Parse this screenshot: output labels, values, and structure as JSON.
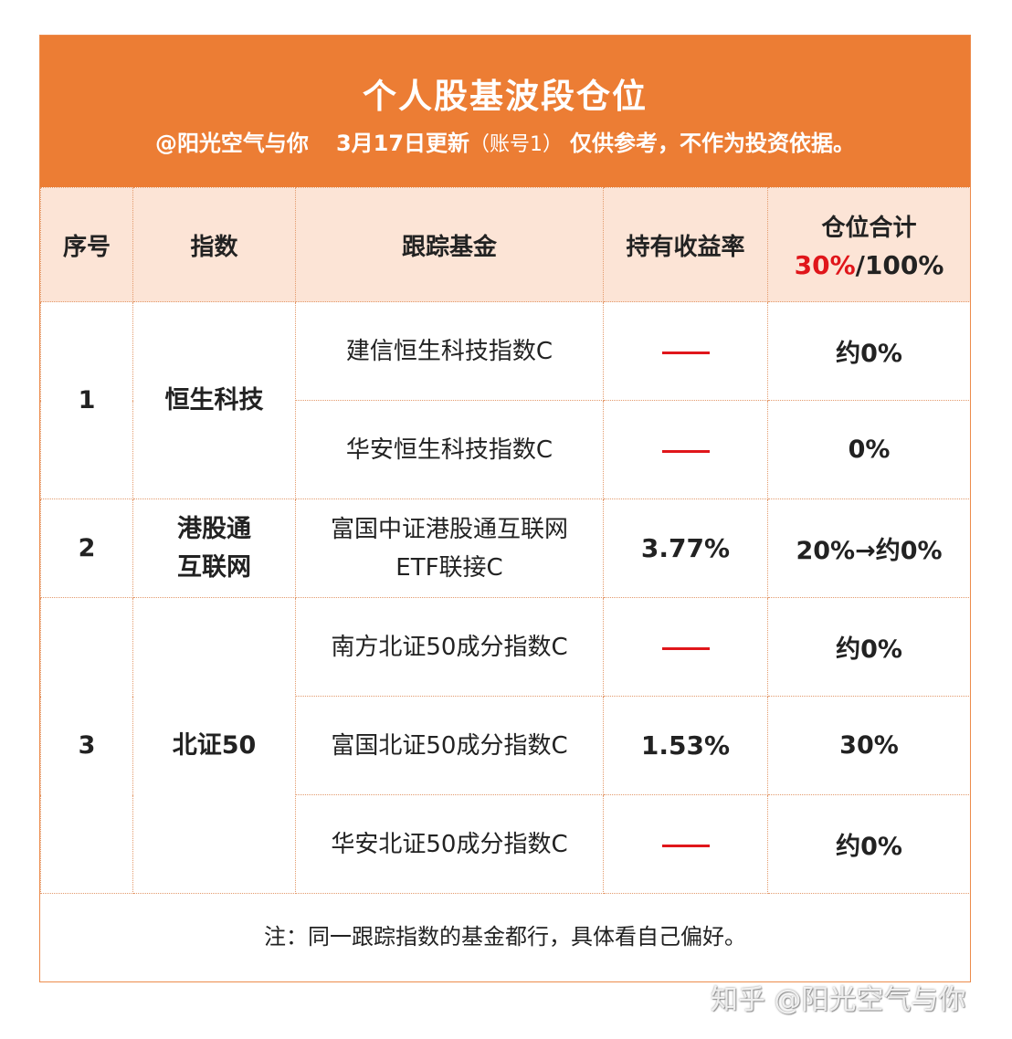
{
  "header": {
    "title": "个人股基波段仓位",
    "author": "@阳光空气与你",
    "update": "3月17日更新",
    "account": "（账号1）",
    "disclaimer": "仅供参考，不作为投资依据。"
  },
  "columns": {
    "seq": "序号",
    "index": "指数",
    "fund": "跟踪基金",
    "return": "持有收益率",
    "position_label": "仓位合计",
    "position_current": "30%",
    "position_sep": "/",
    "position_max": "100%"
  },
  "groups": [
    {
      "seq": "1",
      "index_lines": [
        "恒生科技"
      ],
      "funds": [
        {
          "name_lines": [
            "建信恒生科技指数C"
          ],
          "return": "——",
          "position": "约0%"
        },
        {
          "name_lines": [
            "华安恒生科技指数C"
          ],
          "return": "——",
          "position": "0%"
        }
      ]
    },
    {
      "seq": "2",
      "index_lines": [
        "港股通",
        "互联网"
      ],
      "funds": [
        {
          "name_lines": [
            "富国中证港股通互联网",
            "ETF联接C"
          ],
          "return": "3.77%",
          "position": "20%→约0%"
        }
      ]
    },
    {
      "seq": "3",
      "index_lines": [
        "北证50"
      ],
      "funds": [
        {
          "name_lines": [
            "南方北证50成分指数C"
          ],
          "return": "——",
          "position": "约0%"
        },
        {
          "name_lines": [
            "富国北证50成分指数C"
          ],
          "return": "1.53%",
          "position": "30%"
        },
        {
          "name_lines": [
            "华安北证50成分指数C"
          ],
          "return": "——",
          "position": "约0%"
        }
      ]
    }
  ],
  "note": "注：同一跟踪指数的基金都行，具体看自己偏好。",
  "watermark": "知乎 @阳光空气与你",
  "colors": {
    "banner": "#ec7d34",
    "header_bg": "#fce4d6",
    "return_red": "#e0161b",
    "position_blue": "#5b9bd5"
  }
}
